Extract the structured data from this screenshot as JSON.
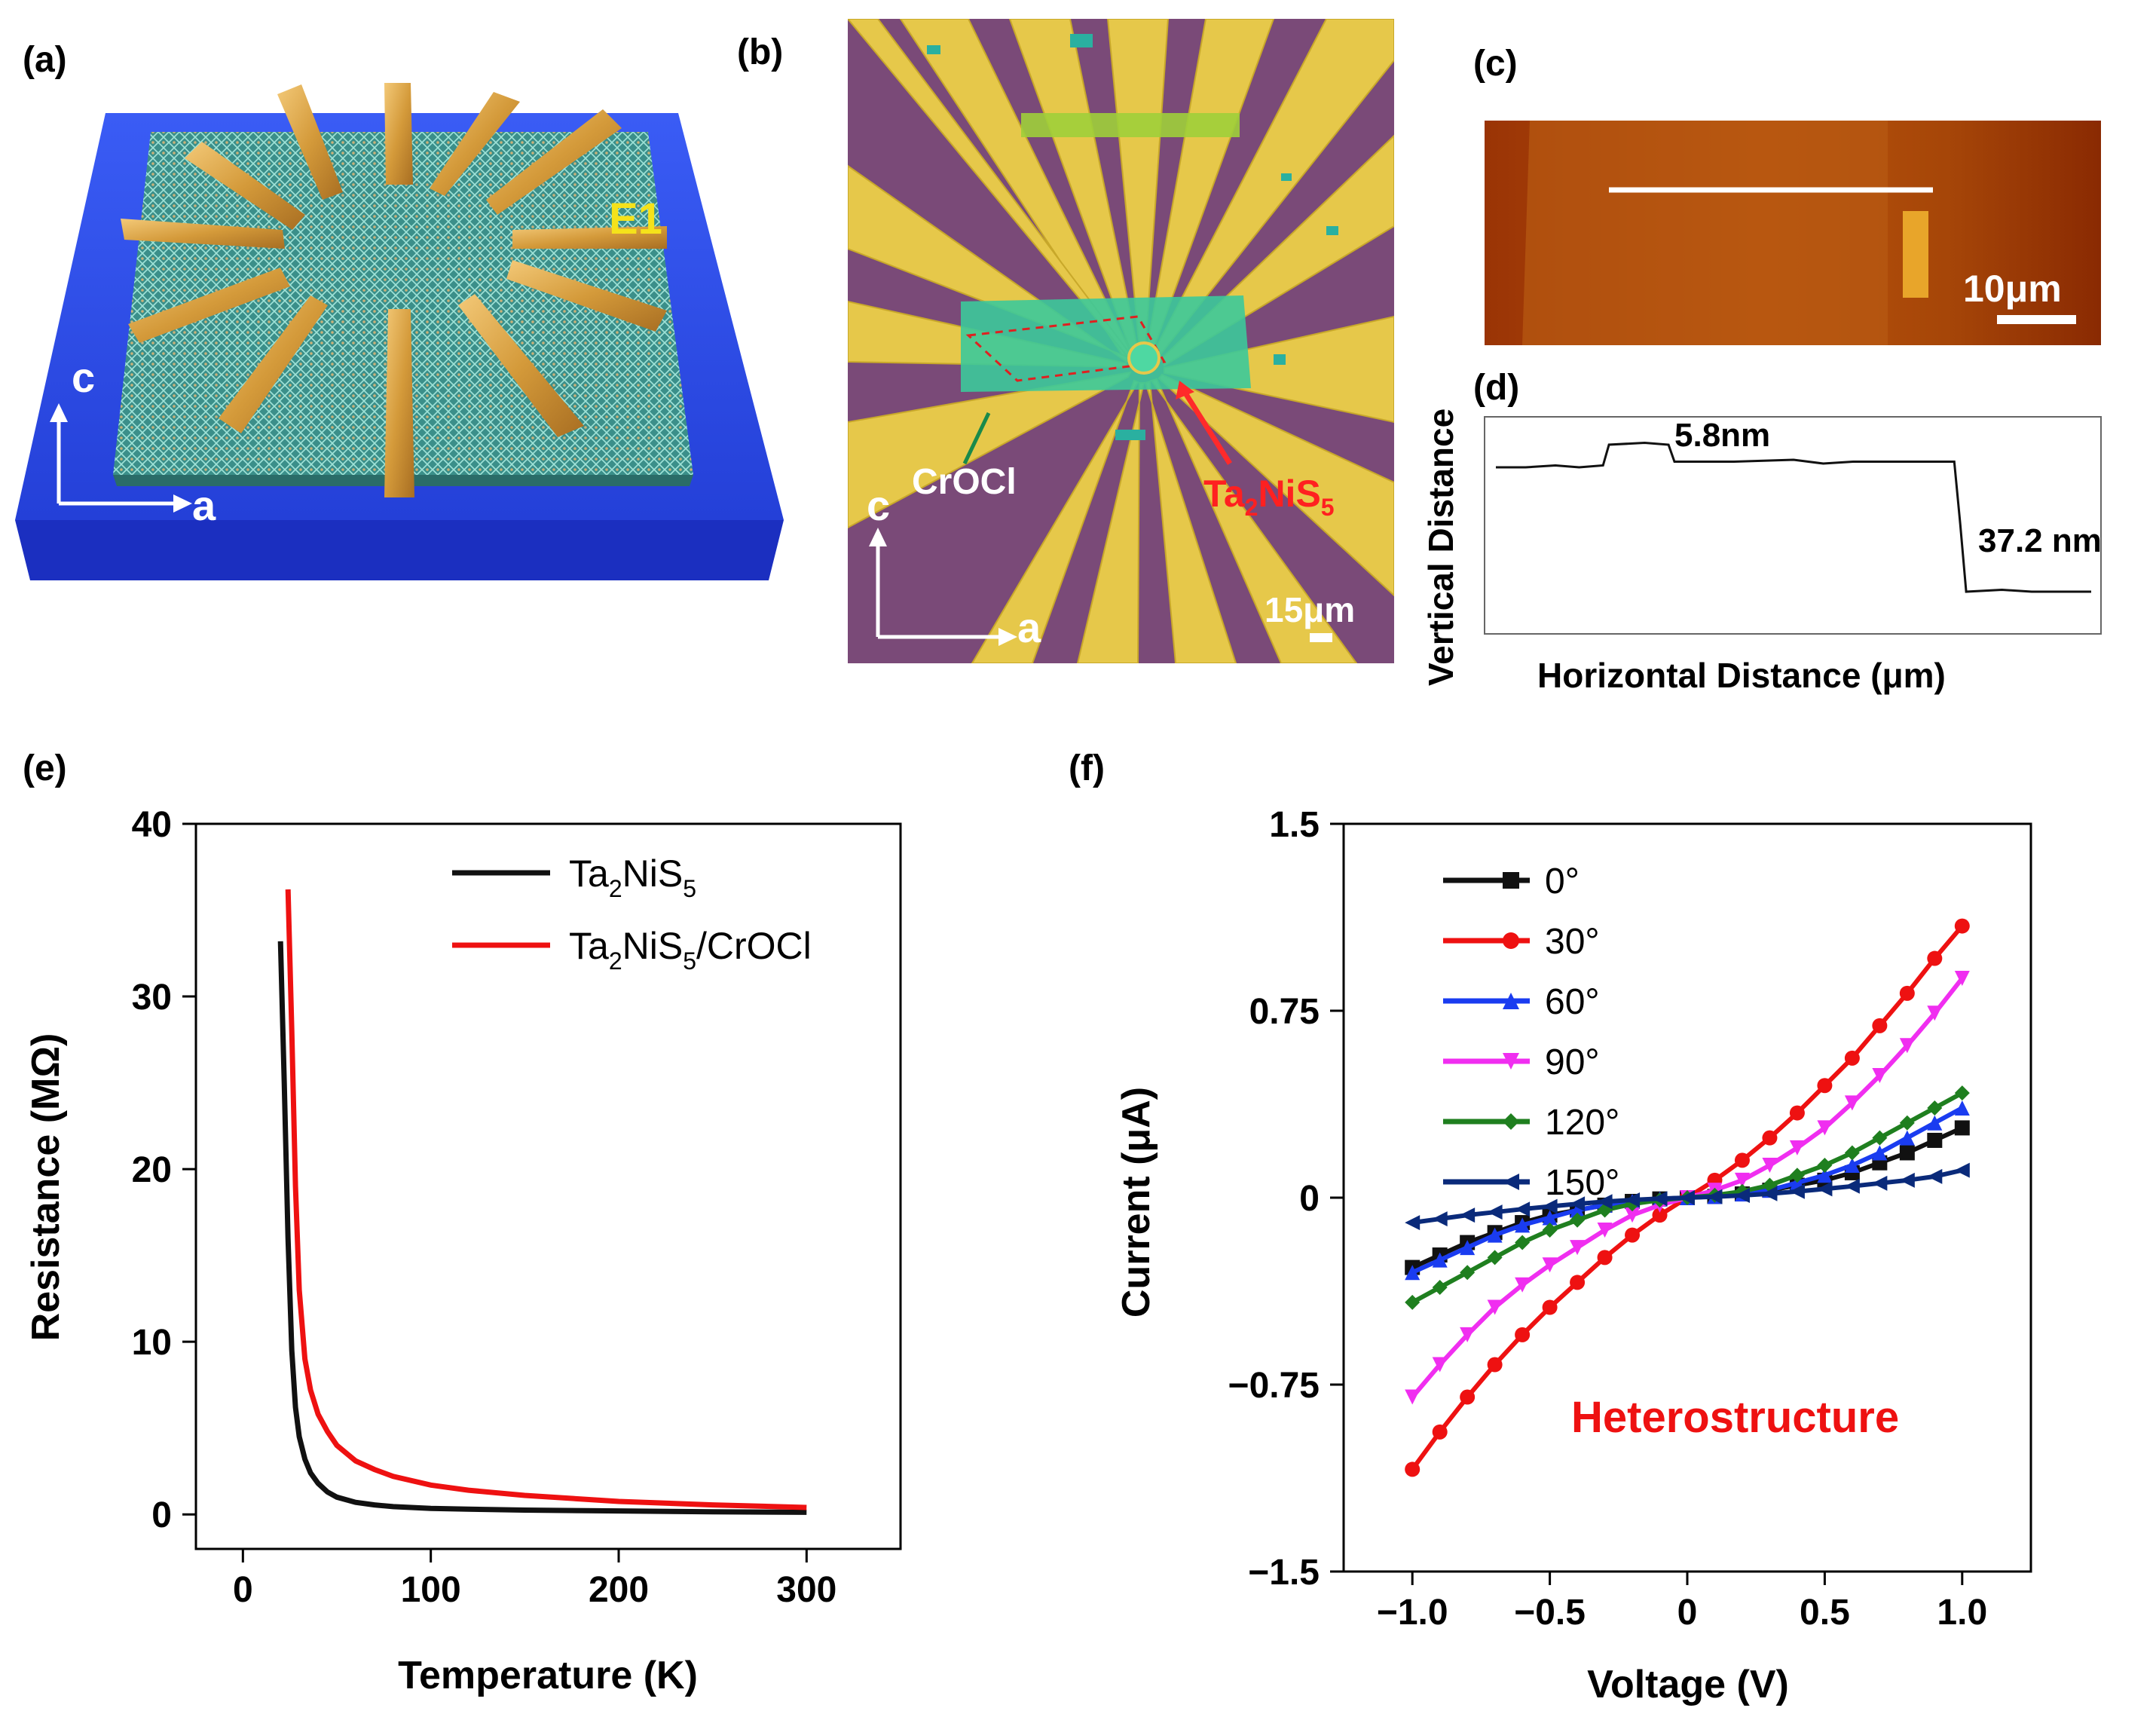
{
  "panels": {
    "a": {
      "label": "(a)",
      "electrode_label": "E1",
      "axis_c": "c",
      "axis_a": "a"
    },
    "b": {
      "label": "(b)",
      "material_crocl": "CrOCl",
      "material_tns_base": "Ta",
      "material_tns_sub1": "2",
      "material_tns_mid": "NiS",
      "material_tns_sub2": "5",
      "axis_c": "c",
      "axis_a": "a",
      "scale_bar": "15μm"
    },
    "c": {
      "label": "(c)",
      "scale_bar": "10μm"
    },
    "d": {
      "label": "(d)",
      "step1": "5.8nm",
      "step2": "37.2 nm",
      "xlabel": "Horizontal Distance (μm)",
      "ylabel": "Vertical Distance"
    },
    "e": {
      "label": "(e)"
    },
    "f": {
      "label": "(f)",
      "annotation": "Heterostructure"
    }
  },
  "colors": {
    "substrate_blue": "#2f50e8",
    "gold": "#d9a441",
    "film_teal": "#3aa7a0",
    "electrode_yellow": "#e6c84a",
    "substrate_purple": "#7a4a78",
    "flake_green": "#3cc99a",
    "afm_brown": "#a63a06",
    "red": "#ee1111",
    "black": "#111111",
    "blue": "#1a3cf0",
    "magenta": "#f02ef0",
    "green": "#1f7f1f",
    "navy": "#0a2a7a"
  },
  "chart_data": [
    {
      "type": "line",
      "panel": "d",
      "title": "",
      "xlabel": "Horizontal Distance (μm)",
      "ylabel": "Vertical Distance",
      "annotations": [
        "5.8nm",
        "37.2 nm"
      ],
      "note": "axes unlabeled (no ticks); AFM height profile in arbitrary normalized units",
      "x": [
        0.0,
        0.05,
        0.1,
        0.14,
        0.18,
        0.19,
        0.25,
        0.29,
        0.3,
        0.4,
        0.5,
        0.55,
        0.6,
        0.7,
        0.77,
        0.78,
        0.79,
        0.85,
        0.9,
        1.0
      ],
      "y": [
        0.8,
        0.8,
        0.81,
        0.8,
        0.81,
        0.92,
        0.93,
        0.92,
        0.83,
        0.83,
        0.84,
        0.82,
        0.83,
        0.83,
        0.83,
        0.5,
        0.14,
        0.15,
        0.14,
        0.14
      ]
    },
    {
      "type": "line",
      "panel": "e",
      "title": "",
      "xlabel": "Temperature (K)",
      "ylabel": "Resistance (MΩ)",
      "xlim": [
        -25,
        350
      ],
      "ylim": [
        -2,
        40
      ],
      "xticks": [
        0,
        100,
        200,
        300
      ],
      "yticks": [
        0,
        10,
        20,
        30,
        40
      ],
      "legend": "top-right",
      "series": [
        {
          "name": "Ta2NiS5",
          "legend_base": "Ta",
          "legend_sub1": "2",
          "legend_mid": "NiS",
          "legend_sub2": "5",
          "legend_tail": "",
          "color": "#111111",
          "x": [
            20,
            22,
            24,
            26,
            28,
            30,
            33,
            36,
            40,
            45,
            50,
            60,
            70,
            80,
            100,
            120,
            150,
            200,
            250,
            300
          ],
          "y": [
            33.2,
            25.0,
            16.0,
            9.5,
            6.2,
            4.5,
            3.2,
            2.4,
            1.8,
            1.3,
            1.0,
            0.7,
            0.55,
            0.45,
            0.35,
            0.3,
            0.25,
            0.2,
            0.15,
            0.12
          ]
        },
        {
          "name": "Ta2NiS5/CrOCl",
          "legend_base": "Ta",
          "legend_sub1": "2",
          "legend_mid": "NiS",
          "legend_sub2": "5",
          "legend_tail": "/CrOCl",
          "color": "#ee1111",
          "x": [
            24,
            26,
            28,
            30,
            33,
            36,
            40,
            45,
            50,
            60,
            70,
            80,
            100,
            120,
            150,
            200,
            250,
            300
          ],
          "y": [
            36.2,
            28.0,
            19.0,
            13.0,
            9.0,
            7.2,
            5.8,
            4.8,
            4.0,
            3.1,
            2.6,
            2.2,
            1.7,
            1.4,
            1.1,
            0.75,
            0.55,
            0.4
          ]
        }
      ]
    },
    {
      "type": "line",
      "panel": "f",
      "title": "",
      "xlabel": "Voltage (V)",
      "ylabel": "Current (μA)",
      "xlim": [
        -1.25,
        1.25
      ],
      "ylim": [
        -1.5,
        1.5
      ],
      "xticks": [
        "−1.0",
        "−0.5",
        "0",
        "0.5",
        "1.0"
      ],
      "xtick_values": [
        -1.0,
        -0.5,
        0,
        0.5,
        1.0
      ],
      "yticks": [
        "1.5",
        "0.75",
        "0",
        "−0.75",
        "−1.5"
      ],
      "ytick_values": [
        1.5,
        0.75,
        0,
        -0.75,
        -1.5
      ],
      "legend": "top-left",
      "x": [
        -1.0,
        -0.9,
        -0.8,
        -0.7,
        -0.6,
        -0.5,
        -0.4,
        -0.3,
        -0.2,
        -0.1,
        0.0,
        0.1,
        0.2,
        0.3,
        0.4,
        0.5,
        0.6,
        0.7,
        0.8,
        0.9,
        1.0
      ],
      "series": [
        {
          "name": "0°",
          "marker": "square",
          "color": "#111111",
          "values": [
            -0.28,
            -0.23,
            -0.18,
            -0.14,
            -0.1,
            -0.07,
            -0.05,
            -0.03,
            -0.015,
            -0.005,
            0.0,
            0.005,
            0.015,
            0.03,
            0.05,
            0.07,
            0.1,
            0.14,
            0.18,
            0.23,
            0.28
          ]
        },
        {
          "name": "30°",
          "marker": "circle",
          "color": "#ee1111",
          "values": [
            -1.09,
            -0.94,
            -0.8,
            -0.67,
            -0.55,
            -0.44,
            -0.34,
            -0.24,
            -0.15,
            -0.07,
            0.0,
            0.07,
            0.15,
            0.24,
            0.34,
            0.45,
            0.56,
            0.69,
            0.82,
            0.96,
            1.09
          ]
        },
        {
          "name": "60°",
          "marker": "triangle-up",
          "color": "#1a3cf0",
          "values": [
            -0.3,
            -0.25,
            -0.2,
            -0.15,
            -0.11,
            -0.08,
            -0.05,
            -0.03,
            -0.015,
            -0.005,
            0.0,
            0.005,
            0.015,
            0.03,
            0.06,
            0.09,
            0.13,
            0.18,
            0.24,
            0.3,
            0.36
          ]
        },
        {
          "name": "90°",
          "marker": "triangle-down",
          "color": "#f02ef0",
          "values": [
            -0.8,
            -0.67,
            -0.55,
            -0.44,
            -0.35,
            -0.27,
            -0.2,
            -0.13,
            -0.07,
            -0.03,
            0.0,
            0.03,
            0.07,
            0.13,
            0.2,
            0.28,
            0.38,
            0.49,
            0.61,
            0.74,
            0.88
          ]
        },
        {
          "name": "120°",
          "marker": "diamond",
          "color": "#1f7f1f",
          "values": [
            -0.42,
            -0.36,
            -0.3,
            -0.24,
            -0.18,
            -0.13,
            -0.09,
            -0.05,
            -0.025,
            -0.01,
            0.0,
            0.01,
            0.025,
            0.05,
            0.09,
            0.13,
            0.18,
            0.24,
            0.3,
            0.36,
            0.42
          ]
        },
        {
          "name": "150°",
          "marker": "triangle-left",
          "color": "#0a2a7a",
          "values": [
            -0.1,
            -0.085,
            -0.07,
            -0.058,
            -0.046,
            -0.035,
            -0.025,
            -0.016,
            -0.009,
            -0.004,
            0.0,
            0.004,
            0.009,
            0.016,
            0.025,
            0.035,
            0.046,
            0.058,
            0.07,
            0.085,
            0.11
          ]
        }
      ]
    }
  ]
}
